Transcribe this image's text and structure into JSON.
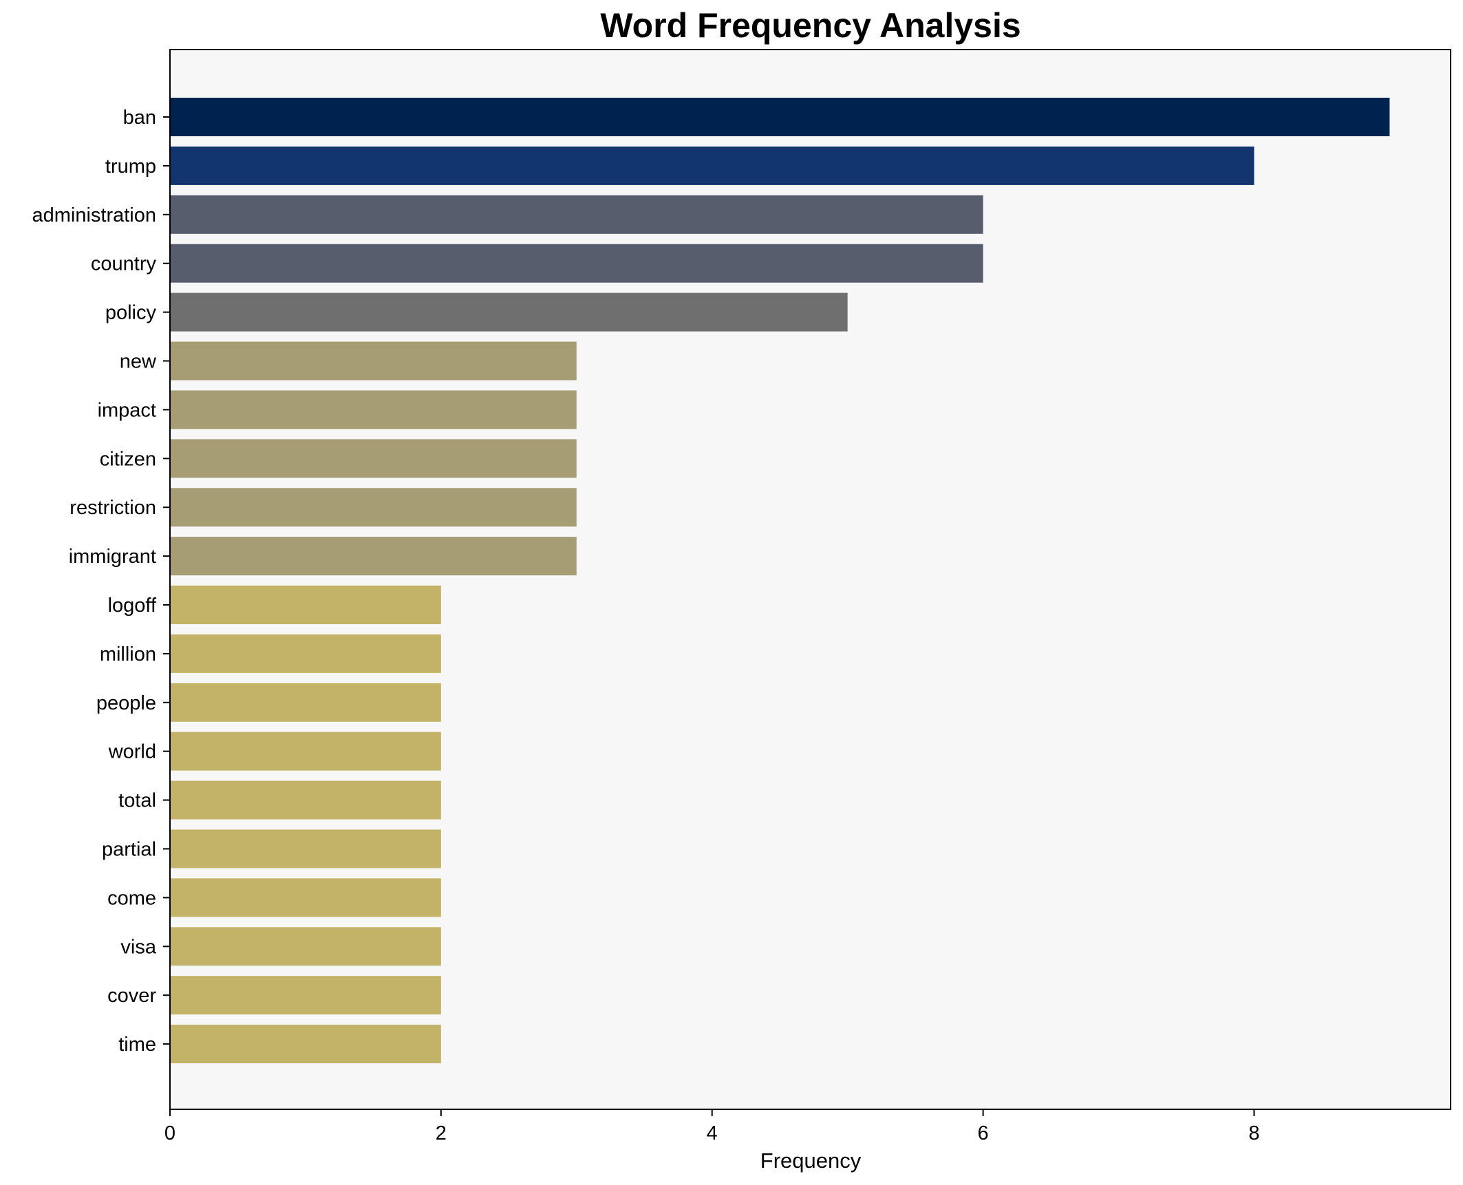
{
  "chart_data": {
    "type": "bar",
    "orientation": "horizontal",
    "title": "Word Frequency Analysis",
    "xlabel": "Frequency",
    "ylabel": "",
    "xlim": [
      0,
      9.45
    ],
    "xticks": [
      0,
      2,
      4,
      6,
      8
    ],
    "grid": false,
    "categories": [
      "ban",
      "trump",
      "administration",
      "country",
      "policy",
      "new",
      "impact",
      "citizen",
      "restriction",
      "immigrant",
      "logoff",
      "million",
      "people",
      "world",
      "total",
      "partial",
      "come",
      "visa",
      "cover",
      "time"
    ],
    "values": [
      9,
      8,
      6,
      6,
      5,
      3,
      3,
      3,
      3,
      3,
      2,
      2,
      2,
      2,
      2,
      2,
      2,
      2,
      2,
      2
    ],
    "colors": [
      "#00224e",
      "#123570",
      "#575d6d",
      "#575d6d",
      "#6f6f70",
      "#a69d75",
      "#a69d75",
      "#a69d75",
      "#a69d75",
      "#a69d75",
      "#c3b369",
      "#c3b369",
      "#c3b369",
      "#c3b369",
      "#c3b369",
      "#c3b369",
      "#c3b369",
      "#c3b369",
      "#c3b369",
      "#c3b369"
    ],
    "plot_background": "#f7f7f7"
  }
}
